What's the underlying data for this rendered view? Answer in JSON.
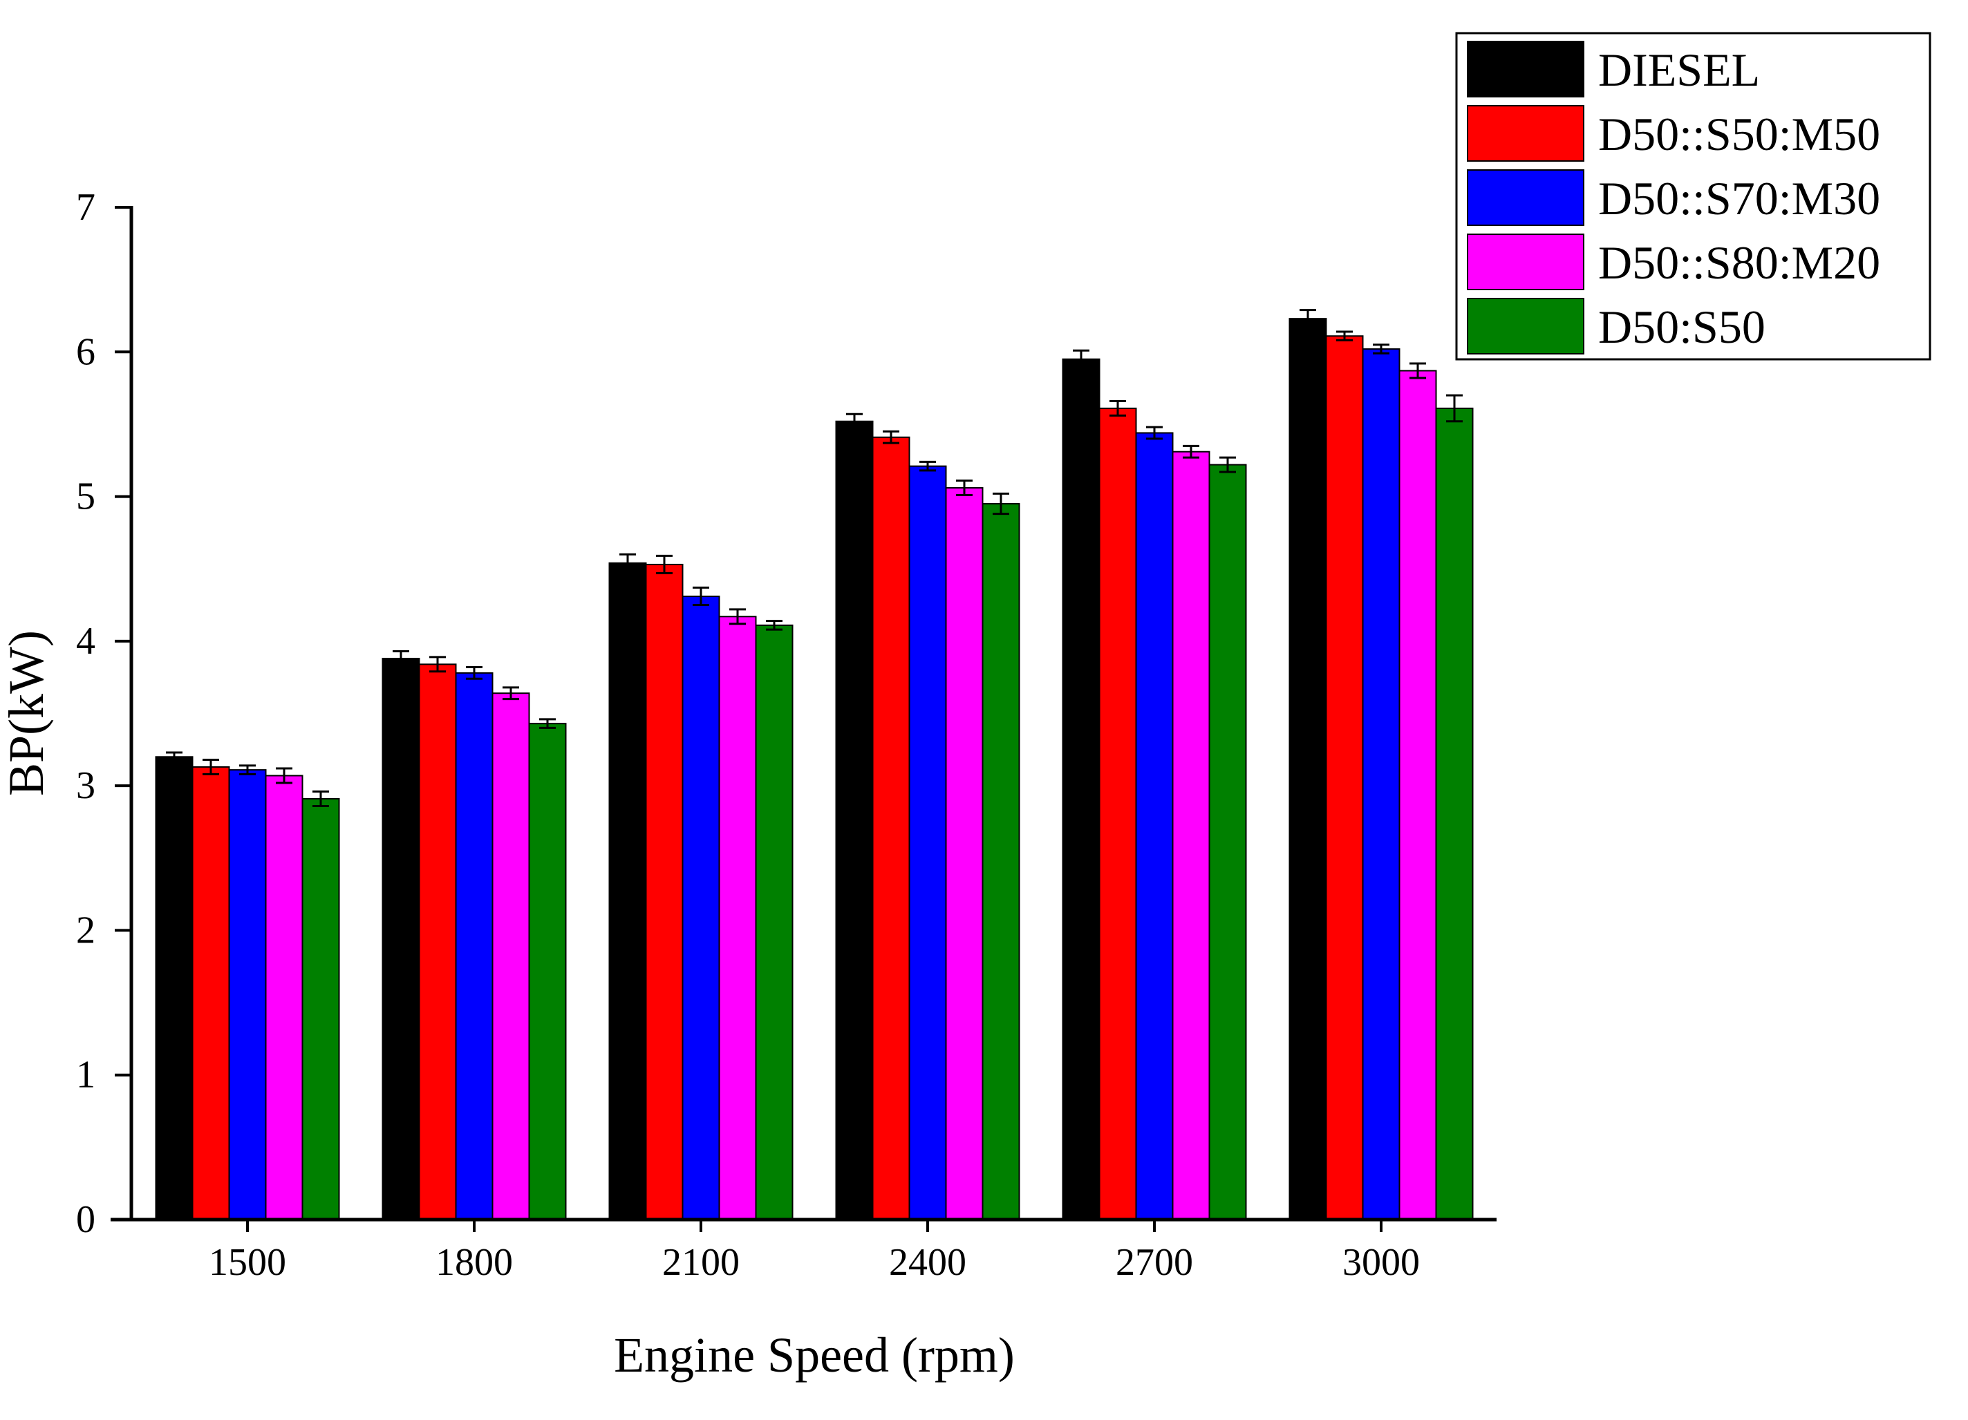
{
  "chart_data": {
    "type": "bar",
    "title": "",
    "xlabel": "Engine Speed (rpm)",
    "ylabel": "BP(kW)",
    "ylim": [
      0,
      7
    ],
    "yticks": [
      "0",
      "1",
      "2",
      "3",
      "4",
      "5",
      "6",
      "7"
    ],
    "categories": [
      "1500",
      "1800",
      "2100",
      "2400",
      "2700",
      "3000"
    ],
    "legend_position": "top-right",
    "grid": false,
    "series": [
      {
        "name": "DIESEL",
        "color": "#000000",
        "values": [
          3.2,
          3.88,
          4.54,
          5.52,
          5.95,
          6.23
        ],
        "errors": [
          0.03,
          0.05,
          0.06,
          0.05,
          0.06,
          0.06
        ]
      },
      {
        "name": "D50::S50:M50",
        "color": "#ff0000",
        "values": [
          3.13,
          3.84,
          4.53,
          5.41,
          5.61,
          6.11
        ],
        "errors": [
          0.05,
          0.05,
          0.06,
          0.04,
          0.05,
          0.03
        ]
      },
      {
        "name": "D50::S70:M30",
        "color": "#0000ff",
        "values": [
          3.11,
          3.78,
          4.31,
          5.21,
          5.44,
          6.02
        ],
        "errors": [
          0.03,
          0.04,
          0.06,
          0.03,
          0.04,
          0.03
        ]
      },
      {
        "name": "D50::S80:M20",
        "color": "#ff00ff",
        "values": [
          3.07,
          3.64,
          4.17,
          5.06,
          5.31,
          5.87
        ],
        "errors": [
          0.05,
          0.04,
          0.05,
          0.05,
          0.04,
          0.05
        ]
      },
      {
        "name": "D50:S50",
        "color": "#008000",
        "values": [
          2.91,
          3.43,
          4.11,
          4.95,
          5.22,
          5.61
        ],
        "errors": [
          0.05,
          0.03,
          0.03,
          0.07,
          0.05,
          0.09
        ]
      }
    ]
  }
}
